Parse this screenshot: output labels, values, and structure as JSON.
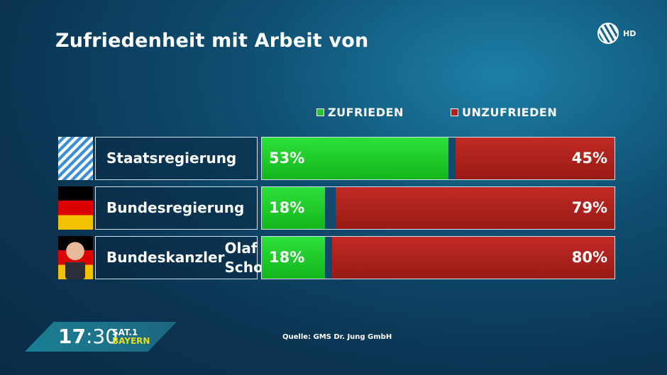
{
  "title": "Zufriedenheit mit Arbeit von",
  "logo": {
    "text": "HD"
  },
  "colors": {
    "zufrieden": "#1ec828",
    "unzufrieden": "#b0221d"
  },
  "chart_data": {
    "type": "bar",
    "stacked": true,
    "orientation": "horizontal",
    "title": "Zufriedenheit mit Arbeit von",
    "categories": [
      "Staatsregierung",
      "Bundesregierung",
      "Bundeskanzler Olaf Scholz"
    ],
    "category_lines": [
      [
        "Staatsregierung"
      ],
      [
        "Bundesregierung"
      ],
      [
        "Bundeskanzler",
        "Olaf Scholz"
      ]
    ],
    "series": [
      {
        "name": "ZUFRIEDEN",
        "values": [
          53,
          18,
          18
        ]
      },
      {
        "name": "UNZUFRIEDEN",
        "values": [
          45,
          79,
          80
        ]
      }
    ],
    "unit": "%",
    "xlim": [
      0,
      100
    ],
    "legend": "top-right"
  },
  "source": "Quelle: GMS Dr. Jung GmbH",
  "clock": {
    "hours": "17",
    "minutes": ":30",
    "channel": "SAT.1",
    "region": "BAYERN"
  }
}
